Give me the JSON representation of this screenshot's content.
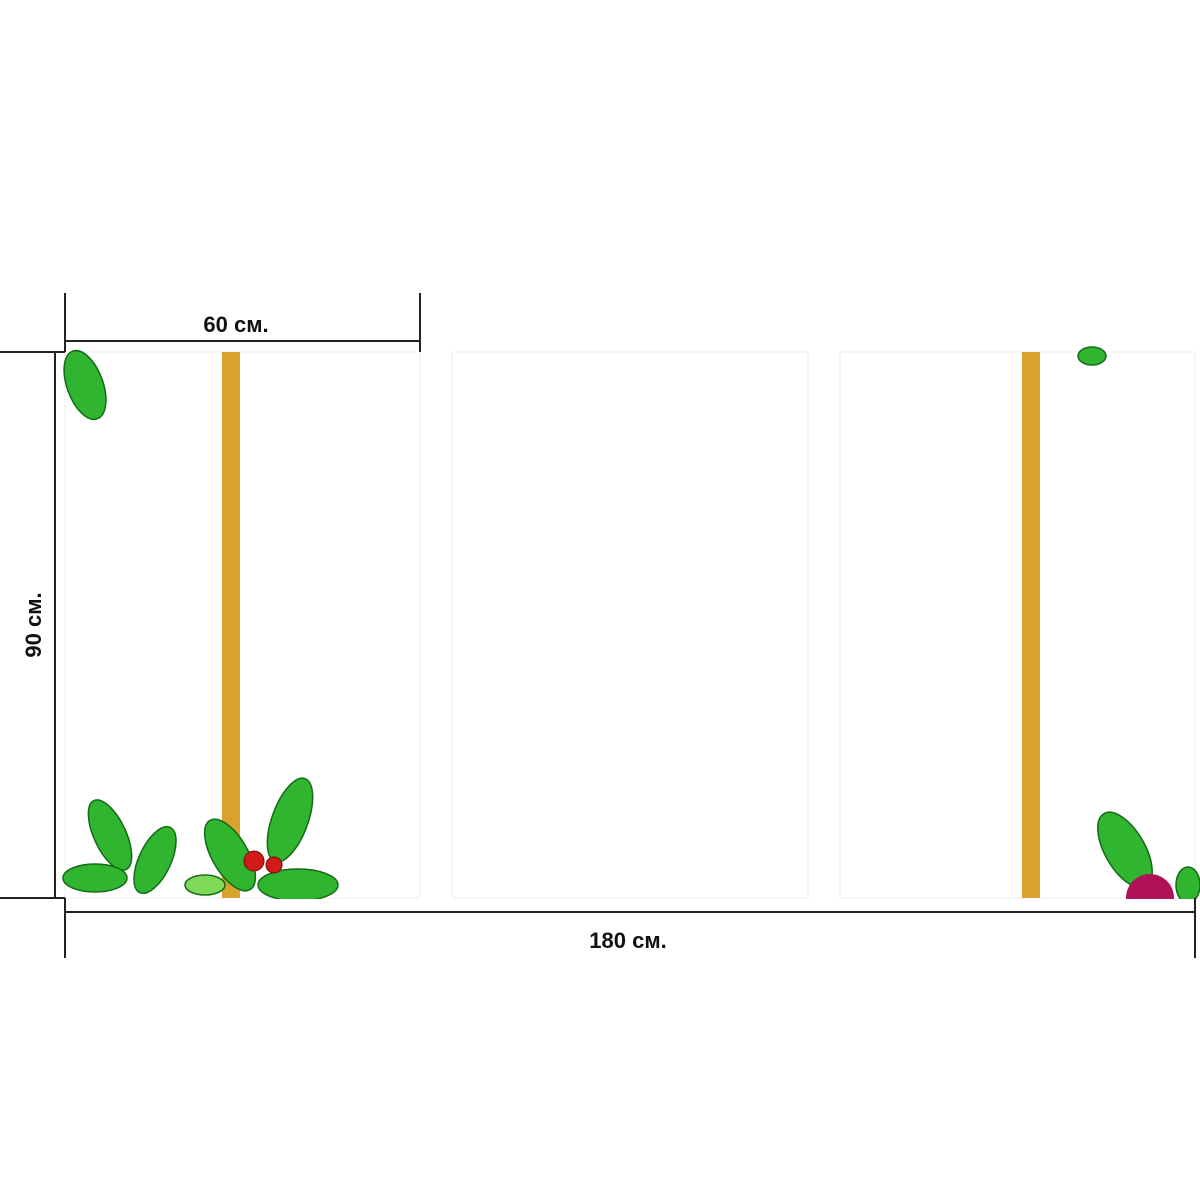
{
  "dimensions": {
    "panel_width": "60 см.",
    "height": "90 см.",
    "total_width": "180 см."
  }
}
